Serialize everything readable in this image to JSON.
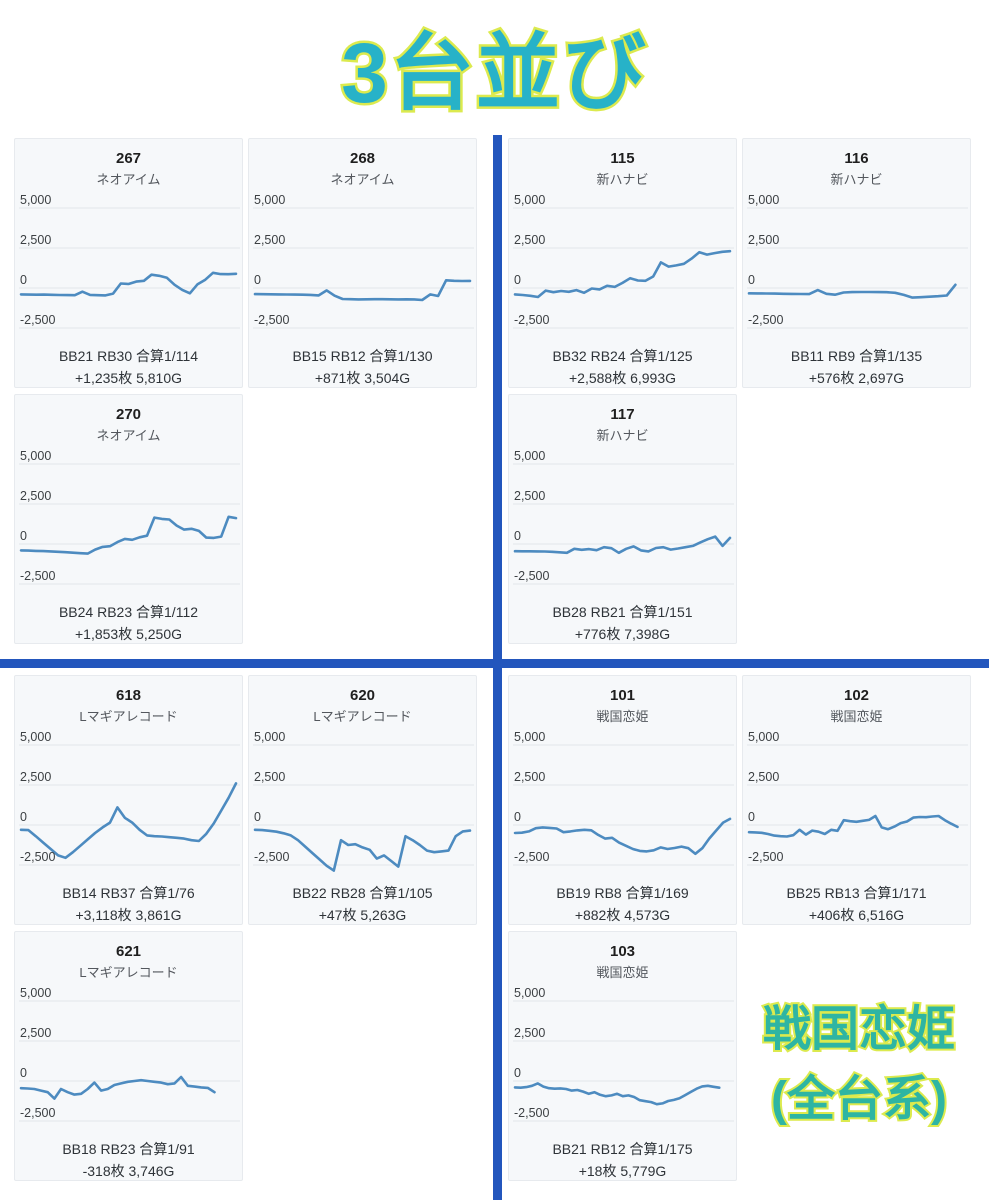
{
  "title": "3台並び",
  "colors": {
    "divider_blue": "#2356bd",
    "line_blue": "#4d8bc0",
    "title_fill": "#27b2c8",
    "title_outline": "#dcea4e",
    "annotation_fill": "#2eb5a3",
    "card_background": "#f6f8fa",
    "gridline": "#e3e6ea"
  },
  "annotation": {
    "line1": "戦国恋姫",
    "line2": "(全台系)"
  },
  "y_axis": {
    "ticks": [
      "5,000",
      "2,500",
      "0",
      "-2,500"
    ],
    "values": [
      5000,
      2500,
      0,
      -2500
    ]
  },
  "quadrants": [
    {
      "name": "top-left",
      "card_indices": [
        0,
        1,
        2
      ]
    },
    {
      "name": "top-right",
      "card_indices": [
        3,
        4,
        5
      ]
    },
    {
      "name": "bottom-left",
      "card_indices": [
        6,
        7,
        8
      ]
    },
    {
      "name": "bottom-right",
      "card_indices": [
        9,
        10,
        11
      ]
    }
  ],
  "chart_data": [
    {
      "type": "line",
      "machine": "267",
      "model": "ネオアイム",
      "stats_line1": "BB21 RB30 合算1/114",
      "stats_line2": "+1,235枚 5,810G",
      "bb": 21,
      "rb": 30,
      "rate": "1/114",
      "diff_medals": 1235,
      "games": 5810,
      "ylim": [
        -2500,
        5000
      ],
      "span": 1.0,
      "values": [
        -400,
        -410,
        -420,
        -415,
        -425,
        -435,
        -445,
        -450,
        -230,
        -430,
        -450,
        -460,
        -350,
        280,
        250,
        400,
        450,
        830,
        760,
        640,
        200,
        -120,
        -330,
        240,
        520,
        950,
        870,
        860,
        890
      ]
    },
    {
      "type": "line",
      "machine": "268",
      "model": "ネオアイム",
      "stats_line1": "BB15 RB12 合算1/130",
      "stats_line2": "+871枚 3,504G",
      "bb": 15,
      "rb": 12,
      "rate": "1/130",
      "diff_medals": 871,
      "games": 3504,
      "ylim": [
        -2500,
        5000
      ],
      "span": 1.0,
      "values": [
        -380,
        -388,
        -395,
        -400,
        -405,
        -412,
        -420,
        -430,
        -460,
        -150,
        -480,
        -690,
        -700,
        -710,
        -705,
        -700,
        -702,
        -706,
        -710,
        -705,
        -712,
        -748,
        -400,
        -500,
        480,
        450,
        440,
        445
      ]
    },
    {
      "type": "line",
      "machine": "270",
      "model": "ネオアイム",
      "stats_line1": "BB24 RB23 合算1/112",
      "stats_line2": "+1,853枚 5,250G",
      "bb": 24,
      "rb": 23,
      "rate": "1/112",
      "diff_medals": 1853,
      "games": 5250,
      "ylim": [
        -2500,
        5000
      ],
      "span": 1.0,
      "values": [
        -400,
        -415,
        -430,
        -445,
        -465,
        -490,
        -515,
        -545,
        -575,
        -600,
        -350,
        -180,
        -140,
        120,
        320,
        260,
        420,
        520,
        1650,
        1570,
        1530,
        1150,
        900,
        950,
        820,
        400,
        380,
        460,
        1700,
        1620
      ]
    },
    {
      "type": "line",
      "machine": "115",
      "model": "新ハナビ",
      "stats_line1": "BB32 RB24 合算1/125",
      "stats_line2": "+2,588枚 6,993G",
      "bb": 32,
      "rb": 24,
      "rate": "1/125",
      "diff_medals": 2588,
      "games": 6993,
      "ylim": [
        -2500,
        5000
      ],
      "span": 1.0,
      "values": [
        -400,
        -440,
        -490,
        -560,
        -160,
        -260,
        -190,
        -240,
        -130,
        -300,
        -30,
        -90,
        140,
        70,
        320,
        610,
        470,
        450,
        720,
        1600,
        1340,
        1410,
        1510,
        1840,
        2240,
        2090,
        2180,
        2260,
        2300
      ]
    },
    {
      "type": "line",
      "machine": "116",
      "model": "新ハナビ",
      "stats_line1": "BB11 RB9 合算1/135",
      "stats_line2": "+576枚 2,697G",
      "bb": 11,
      "rb": 9,
      "rate": "1/135",
      "diff_medals": 576,
      "games": 2697,
      "ylim": [
        -2500,
        5000
      ],
      "span": 0.96,
      "values": [
        -330,
        -338,
        -345,
        -352,
        -360,
        -368,
        -375,
        -382,
        -130,
        -360,
        -420,
        -280,
        -255,
        -250,
        -252,
        -258,
        -265,
        -300,
        -430,
        -600,
        -575,
        -545,
        -515,
        -470,
        200
      ]
    },
    {
      "type": "line",
      "machine": "117",
      "model": "新ハナビ",
      "stats_line1": "BB28 RB21 合算1/151",
      "stats_line2": "+776枚 7,398G",
      "bb": 28,
      "rb": 21,
      "rate": "1/151",
      "diff_medals": 776,
      "games": 7398,
      "ylim": [
        -2500,
        5000
      ],
      "span": 1.0,
      "values": [
        -450,
        -455,
        -458,
        -462,
        -470,
        -490,
        -520,
        -550,
        -300,
        -360,
        -320,
        -390,
        -200,
        -260,
        -550,
        -300,
        -150,
        -400,
        -460,
        -250,
        -200,
        -350,
        -280,
        -200,
        -120,
        100,
        300,
        460,
        -120,
        380
      ]
    },
    {
      "type": "line",
      "machine": "618",
      "model": "Lマギアレコード",
      "stats_line1": "BB14 RB37 合算1/76",
      "stats_line2": "+3,118枚 3,861G",
      "bb": 14,
      "rb": 37,
      "rate": "1/76",
      "diff_medals": 3118,
      "games": 3861,
      "ylim": [
        -2500,
        5000
      ],
      "span": 1.0,
      "values": [
        -300,
        -320,
        -700,
        -1100,
        -1500,
        -1900,
        -2050,
        -1700,
        -1300,
        -900,
        -500,
        -150,
        150,
        1100,
        450,
        150,
        -300,
        -650,
        -700,
        -720,
        -760,
        -800,
        -850,
        -950,
        -1000,
        -550,
        100,
        900,
        1700,
        2600
      ]
    },
    {
      "type": "line",
      "machine": "620",
      "model": "Lマギアレコード",
      "stats_line1": "BB22 RB28 合算1/105",
      "stats_line2": "+47枚 5,263G",
      "bb": 22,
      "rb": 28,
      "rate": "1/105",
      "diff_medals": 47,
      "games": 5263,
      "ylim": [
        -2500,
        5000
      ],
      "span": 1.0,
      "values": [
        -300,
        -320,
        -360,
        -420,
        -520,
        -650,
        -950,
        -1350,
        -1750,
        -2150,
        -2550,
        -2850,
        -950,
        -1250,
        -1200,
        -1400,
        -1550,
        -2100,
        -1900,
        -2250,
        -2600,
        -700,
        -950,
        -1250,
        -1600,
        -1700,
        -1650,
        -1600,
        -700,
        -400,
        -350
      ]
    },
    {
      "type": "line",
      "machine": "621",
      "model": "Lマギアレコード",
      "stats_line1": "BB18 RB23 合算1/91",
      "stats_line2": "-318枚 3,746G",
      "bb": 18,
      "rb": 23,
      "rate": "1/91",
      "diff_medals": -318,
      "games": 3746,
      "ylim": [
        -2500,
        5000
      ],
      "span": 0.9,
      "values": [
        -450,
        -470,
        -500,
        -600,
        -700,
        -1100,
        -500,
        -700,
        -850,
        -800,
        -500,
        -100,
        -600,
        -500,
        -250,
        -150,
        -50,
        0,
        50,
        0,
        -50,
        -100,
        -200,
        -150,
        250,
        -300,
        -350,
        -400,
        -430,
        -700
      ]
    },
    {
      "type": "line",
      "machine": "101",
      "model": "戦国恋姫",
      "stats_line1": "BB19 RB8 合算1/169",
      "stats_line2": "+882枚 4,573G",
      "bb": 19,
      "rb": 8,
      "rate": "1/169",
      "diff_medals": 882,
      "games": 4573,
      "ylim": [
        -2500,
        5000
      ],
      "span": 1.0,
      "values": [
        -500,
        -480,
        -400,
        -200,
        -150,
        -180,
        -220,
        -450,
        -400,
        -340,
        -300,
        -330,
        -620,
        -850,
        -800,
        -1100,
        -1300,
        -1500,
        -1620,
        -1650,
        -1580,
        -1400,
        -1500,
        -1440,
        -1350,
        -1450,
        -1800,
        -1450,
        -850,
        -350,
        150,
        380
      ]
    },
    {
      "type": "line",
      "machine": "102",
      "model": "戦国恋姫",
      "stats_line1": "BB25 RB13 合算1/171",
      "stats_line2": "+406枚 6,516G",
      "bb": 25,
      "rb": 13,
      "rate": "1/171",
      "diff_medals": 406,
      "games": 6516,
      "ylim": [
        -2500,
        5000
      ],
      "span": 0.97,
      "values": [
        -450,
        -460,
        -490,
        -560,
        -660,
        -700,
        -720,
        -640,
        -300,
        -600,
        -350,
        -420,
        -560,
        -300,
        -360,
        300,
        240,
        200,
        260,
        320,
        560,
        -150,
        -260,
        -100,
        120,
        220,
        460,
        500,
        490,
        530,
        560,
        300,
        80,
        -120
      ]
    },
    {
      "type": "line",
      "machine": "103",
      "model": "戦国恋姫",
      "stats_line1": "BB21 RB12 合算1/175",
      "stats_line2": "+18枚 5,779G",
      "bb": 21,
      "rb": 12,
      "rate": "1/175",
      "diff_medals": 18,
      "games": 5779,
      "ylim": [
        -2500,
        5000
      ],
      "span": 0.95,
      "values": [
        -400,
        -420,
        -380,
        -300,
        -150,
        -350,
        -450,
        -480,
        -460,
        -500,
        -600,
        -560,
        -660,
        -800,
        -700,
        -860,
        -950,
        -900,
        -800,
        -950,
        -900,
        -1000,
        -1200,
        -1260,
        -1320,
        -1450,
        -1400,
        -1250,
        -1180,
        -1080,
        -880,
        -680,
        -480,
        -340,
        -300,
        -360,
        -420
      ]
    }
  ]
}
